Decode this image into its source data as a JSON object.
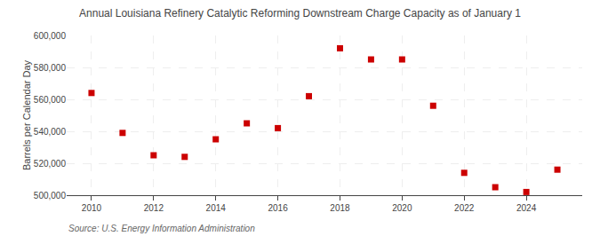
{
  "chart_data": {
    "type": "scatter",
    "title": "Annual Louisiana Refinery Catalytic Reforming Downstream Charge Capacity as of January 1",
    "ylabel": "Barrels per Calendar Day",
    "annotations": [
      "Source: U.S. Energy Information Administration"
    ],
    "x": [
      2010,
      2011,
      2012,
      2013,
      2014,
      2015,
      2016,
      2017,
      2018,
      2019,
      2020,
      2021,
      2022,
      2023,
      2024,
      2025
    ],
    "values": [
      564000,
      539000,
      525000,
      524000,
      535000,
      545000,
      542000,
      562000,
      592000,
      585000,
      585000,
      556000,
      514000,
      505000,
      502000,
      516000
    ],
    "color": "#cc0000",
    "marker": "square",
    "xlim": [
      2009.2,
      2025.8
    ],
    "xticks": [
      2010,
      2012,
      2014,
      2016,
      2018,
      2020,
      2022,
      2024
    ],
    "ylim": [
      500000,
      600000
    ],
    "yticks": [
      {
        "value": 500000,
        "label": "500,000"
      },
      {
        "value": 520000,
        "label": "520,000"
      },
      {
        "value": 540000,
        "label": "540,000"
      },
      {
        "value": 560000,
        "label": "560,000"
      },
      {
        "value": 580000,
        "label": "580,000"
      },
      {
        "value": 600000,
        "label": "600,000"
      }
    ],
    "grid": true
  }
}
